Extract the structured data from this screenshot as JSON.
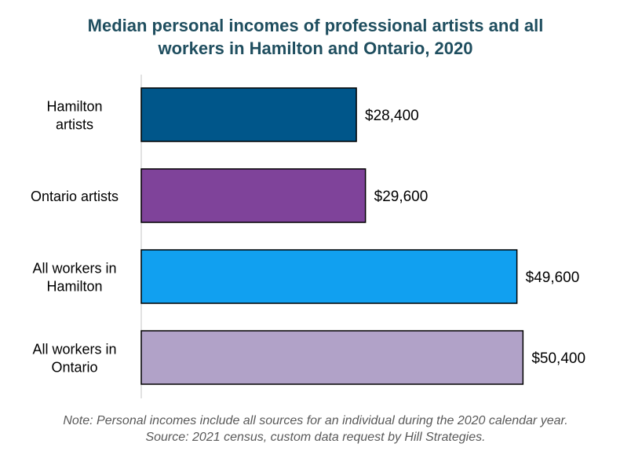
{
  "chart_data": {
    "type": "bar",
    "orientation": "horizontal",
    "title_lines": [
      "Median personal incomes of professional artists and all",
      "workers in Hamilton and Ontario, 2020"
    ],
    "categories": [
      [
        "Hamilton",
        "artists"
      ],
      [
        "Ontario artists"
      ],
      [
        "All workers in",
        "Hamilton"
      ],
      [
        "All workers in",
        "Ontario"
      ]
    ],
    "values": [
      28400,
      29600,
      49600,
      50400
    ],
    "data_labels": [
      "$28,400",
      "$29,600",
      "$49,600",
      "$50,400"
    ],
    "colors": [
      "#00568a",
      "#7f439a",
      "#11a0f0",
      "#b1a2c8"
    ],
    "xlim": [
      0,
      60000
    ],
    "grid": false,
    "legend": "none"
  },
  "notes": [
    "Note: Personal incomes include all sources for an individual  during the 2020 calendar year.",
    "Source: 2021 census, custom data request by Hill Strategies."
  ]
}
